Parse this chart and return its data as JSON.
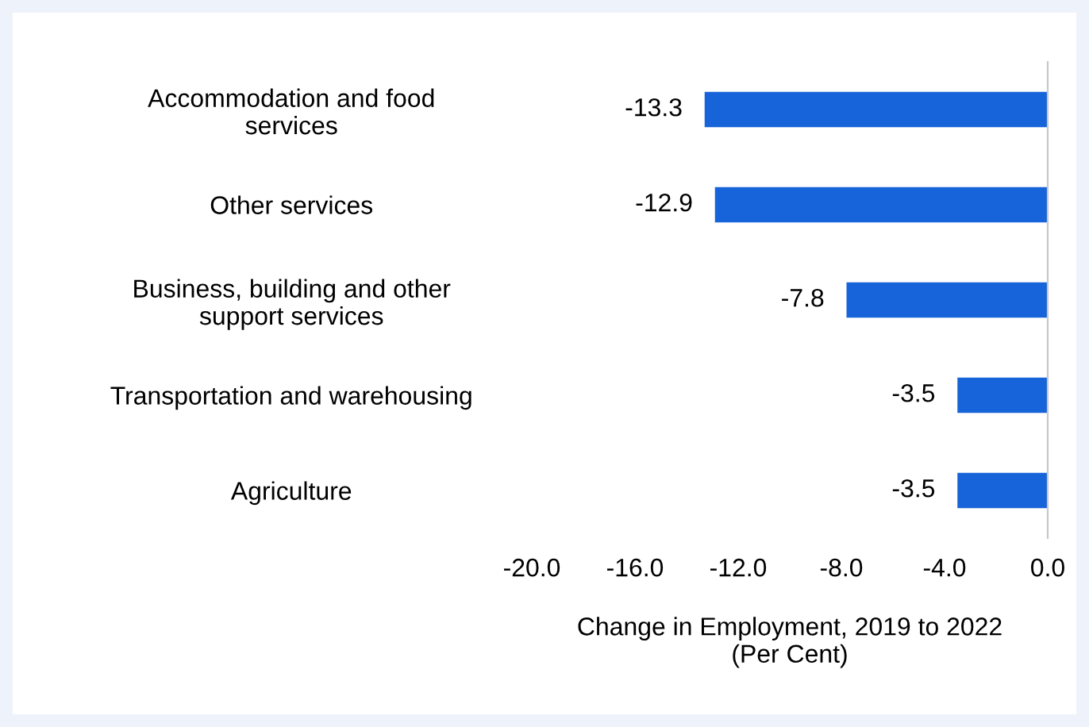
{
  "chart_data": {
    "type": "bar",
    "orientation": "horizontal",
    "categories": [
      "Accommodation and food\nservices",
      "Other services",
      "Business, building and other\nsupport services",
      "Transportation and warehousing",
      "Agriculture"
    ],
    "values": [
      -13.3,
      -12.9,
      -7.8,
      -3.5,
      -3.5
    ],
    "value_labels": [
      "-13.3",
      "-12.9",
      "-7.8",
      "-3.5",
      "-3.5"
    ],
    "color": "#1763d9",
    "xlabel": "Change in Employment, 2019 to 2022\n(Per Cent)",
    "xlim": [
      -20,
      0
    ],
    "xticks": [
      {
        "value": -20,
        "label": "-20.0"
      },
      {
        "value": -16,
        "label": "-16.0"
      },
      {
        "value": -12,
        "label": "-12.0"
      },
      {
        "value": -8,
        "label": "-8.0"
      },
      {
        "value": -4,
        "label": "-4.0"
      },
      {
        "value": 0,
        "label": "0.0"
      }
    ],
    "grid": false,
    "legend": false
  }
}
